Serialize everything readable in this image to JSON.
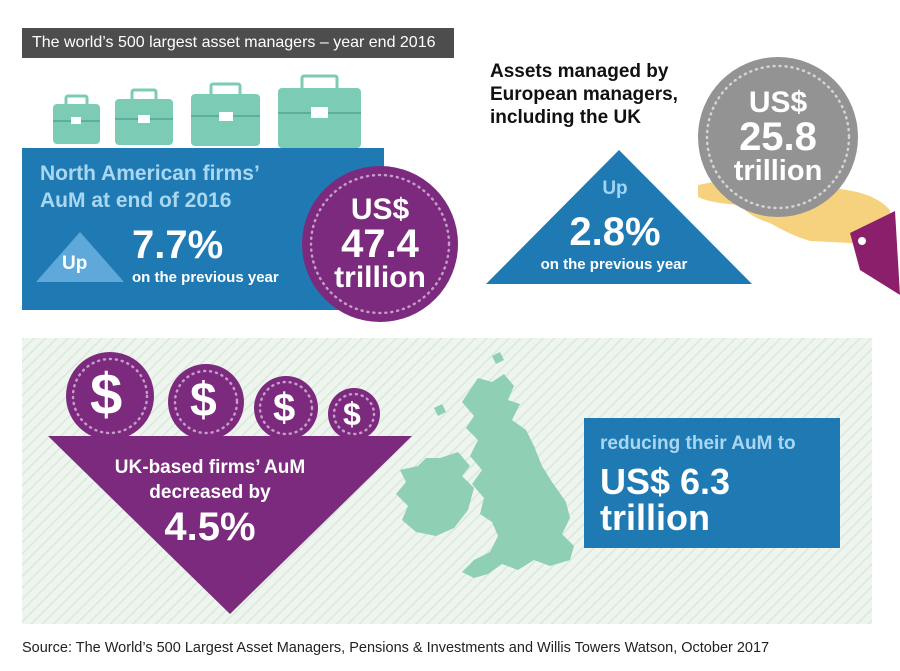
{
  "header": {
    "title": "The world’s 500 largest asset managers – year end 2016"
  },
  "north_america": {
    "label_line1": "North American firms’",
    "label_line2": "AuM at end of 2016",
    "up": "Up",
    "change": "7.7%",
    "comparison": "on the previous year",
    "amount_line1": "US$",
    "amount_line2": "47.4",
    "amount_line3": "trillion"
  },
  "europe": {
    "heading_line1": "Assets managed by",
    "heading_line2": "European managers,",
    "heading_line3": "including the UK",
    "amount_line1": "US$",
    "amount_line2": "25.8",
    "amount_line3": "trillion",
    "up": "Up",
    "change": "2.8%",
    "comparison": "on the previous year"
  },
  "uk": {
    "label_line1": "UK-based firms’ AuM",
    "label_line2": "decreased by",
    "change": "4.5%",
    "reduce_label": "reducing their AuM to",
    "amount_line1": "US$ 6.3",
    "amount_line2": "trillion"
  },
  "coin_symbol": "$",
  "source": "Source: The World’s 500 Largest Asset Managers, Pensions & Investments and Willis Towers Watson, October 2017",
  "colors": {
    "blue": "#1f7ab4",
    "light_blue": "#a9d7f2",
    "purple": "#7b2a7e",
    "teal": "#5cc3ad",
    "grey": "#939393",
    "dark_grey": "#4d4d4d",
    "hand": "#f6d27e"
  }
}
